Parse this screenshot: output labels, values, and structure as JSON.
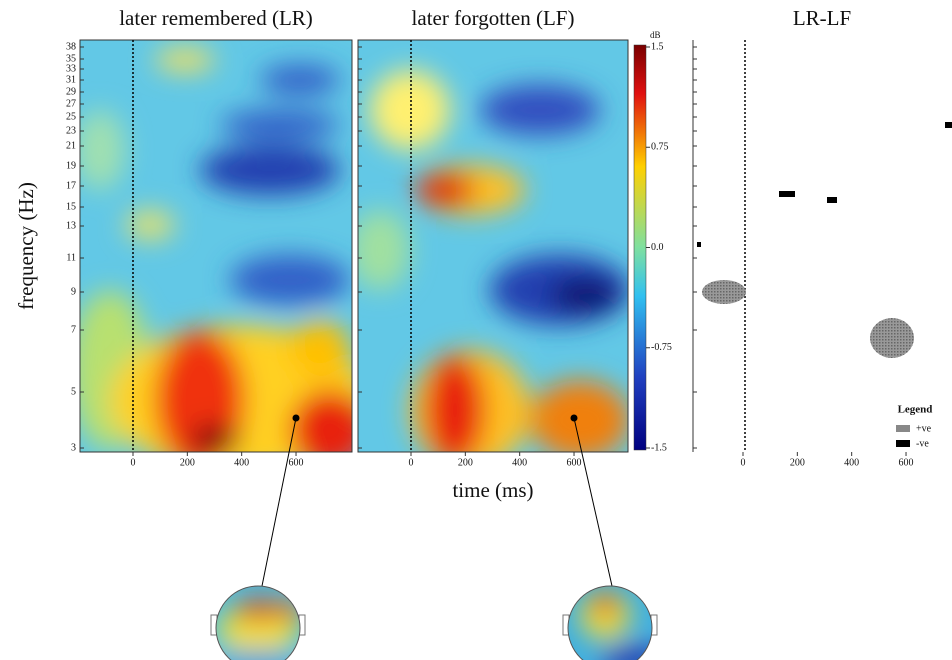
{
  "panels": [
    {
      "title": "later remembered (LR)"
    },
    {
      "title": "later forgotten (LF)"
    },
    {
      "title": "LR-LF"
    }
  ],
  "y_axis": {
    "label": "frequency (Hz)",
    "ticks": [
      3,
      5,
      7,
      9,
      11,
      13,
      15,
      17,
      19,
      21,
      23,
      25,
      27,
      29,
      31,
      33,
      35,
      38
    ]
  },
  "x_axis": {
    "label": "time (ms)",
    "ticks": [
      0,
      200,
      400,
      600
    ],
    "range": [
      -195,
      806
    ]
  },
  "colorbar": {
    "unit": "dB",
    "range": [
      -1.5,
      1.5
    ],
    "ticks": [
      1.5,
      0.75,
      {
        "value": 0,
        "label": "0.0"
      },
      -0.75,
      -1.5
    ]
  },
  "legend": {
    "title": "Legend",
    "items": [
      "+ve",
      "-ve"
    ]
  }
}
